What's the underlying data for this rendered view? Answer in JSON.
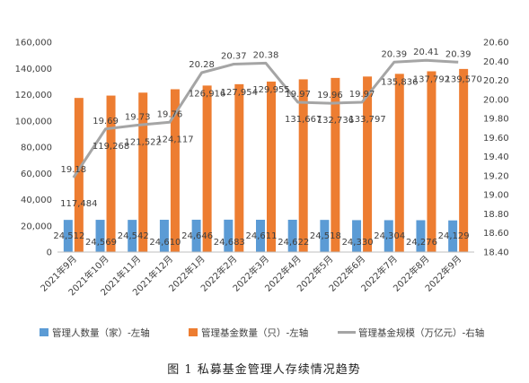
{
  "chart_data": {
    "type": "bar",
    "categories": [
      "2021年9月",
      "2021年10月",
      "2021年11月",
      "2021年12月",
      "2022年1月",
      "2022年2月",
      "2022年3月",
      "2022年4月",
      "2022年5月",
      "2022年6月",
      "2022年7月",
      "2022年8月",
      "2022年9月"
    ],
    "series": [
      {
        "name": "管理人数量（家）-左轴",
        "type": "bar",
        "axis": "left",
        "color": "#5B9BD5",
        "values": [
          24512,
          24569,
          24542,
          24610,
          24646,
          24683,
          24611,
          24622,
          24518,
          24330,
          24304,
          24276,
          24129
        ],
        "labels": [
          "24,512",
          "24,569",
          "24,542",
          "24,610",
          "24,646",
          "24,683",
          "24,611",
          "24,622",
          "24,518",
          "24,330",
          "24,304",
          "24,276",
          "24,129"
        ]
      },
      {
        "name": "管理基金数量（只）-左轴",
        "type": "bar",
        "axis": "left",
        "color": "#ED7D31",
        "values": [
          117484,
          119268,
          121522,
          124117,
          126916,
          127954,
          129955,
          131667,
          132736,
          133797,
          135836,
          137792,
          139570
        ],
        "labels": [
          "117,484",
          "119,268",
          "121,522",
          "124,117",
          "126,916",
          "127,954",
          "129,955",
          "131,667",
          "132,736",
          "133,797",
          "135,836",
          "137,792",
          "139,570"
        ]
      },
      {
        "name": "管理基金规模（万亿元）-右轴",
        "type": "line",
        "axis": "right",
        "color": "#A5A5A5",
        "values": [
          19.18,
          19.69,
          19.73,
          19.76,
          20.28,
          20.37,
          20.38,
          19.97,
          19.96,
          19.97,
          20.39,
          20.41,
          20.39
        ],
        "labels": [
          "19.18",
          "19.69",
          "19.73",
          "19.76",
          "20.28",
          "20.37",
          "20.38",
          "19.97",
          "19.96",
          "19.97",
          "20.39",
          "20.41",
          "20.39"
        ]
      }
    ],
    "left_axis": {
      "min": 0,
      "max": 160000,
      "step": 20000,
      "tick_labels": [
        "0",
        "20,000",
        "40,000",
        "60,000",
        "80,000",
        "100,000",
        "120,000",
        "140,000",
        "160,000"
      ]
    },
    "right_axis": {
      "min": 18.4,
      "max": 20.6,
      "step": 0.2,
      "tick_labels": [
        "18.40",
        "18.60",
        "18.80",
        "19.00",
        "19.20",
        "19.40",
        "19.60",
        "19.80",
        "20.00",
        "20.20",
        "20.40",
        "20.60"
      ]
    },
    "grid": false,
    "legend_position": "bottom",
    "caption": "图 1  私募基金管理人存续情况趋势"
  }
}
